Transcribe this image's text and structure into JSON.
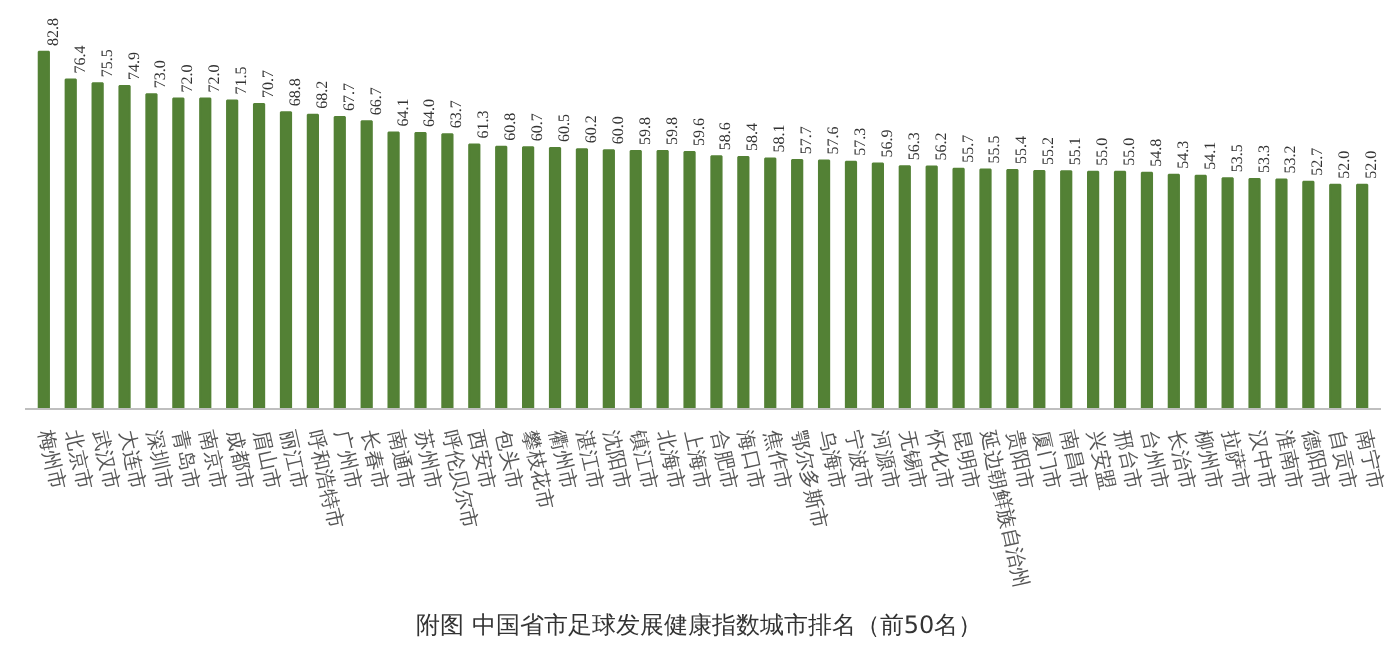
{
  "chart_data": {
    "type": "bar",
    "title": "附图  中国省市足球发展健康指数城市排名（前50名）",
    "categories": [
      "梅州市",
      "北京市",
      "武汉市",
      "大连市",
      "深圳市",
      "青岛市",
      "南京市",
      "成都市",
      "眉山市",
      "丽江市",
      "呼和浩特市",
      "广州市",
      "长春市",
      "南通市",
      "苏州市",
      "呼伦贝尔市",
      "西安市",
      "包头市",
      "攀枝花市",
      "衢州市",
      "湛江市",
      "沈阳市",
      "镇江市",
      "北海市",
      "上海市",
      "合肥市",
      "海口市",
      "焦作市",
      "鄂尔多斯市",
      "乌海市",
      "宁波市",
      "河源市",
      "无锡市",
      "怀化市",
      "昆明市",
      "延边朝鲜族自治州",
      "贵阳市",
      "厦门市",
      "南昌市",
      "兴安盟",
      "邢台市",
      "台州市",
      "长治市",
      "柳州市",
      "拉萨市",
      "汉中市",
      "淮南市",
      "德阳市",
      "自贡市",
      "南宁市"
    ],
    "values": [
      82.8,
      76.4,
      75.5,
      74.9,
      73.0,
      72.0,
      72.0,
      71.5,
      70.7,
      68.8,
      68.2,
      67.7,
      66.7,
      64.1,
      64.0,
      63.7,
      61.3,
      60.8,
      60.7,
      60.5,
      60.2,
      60.0,
      59.8,
      59.8,
      59.6,
      58.6,
      58.4,
      58.1,
      57.7,
      57.6,
      57.3,
      56.9,
      56.3,
      56.2,
      55.7,
      55.5,
      55.4,
      55.2,
      55.1,
      55.0,
      55.0,
      54.8,
      54.3,
      54.1,
      53.5,
      53.3,
      53.2,
      52.7,
      52.0,
      52.0
    ],
    "value_labels": [
      "82.8",
      "76.4",
      "75.5",
      "74.9",
      "73.0",
      "72.0",
      "72.0",
      "71.5",
      "70.7",
      "68.8",
      "68.2",
      "67.7",
      "66.7",
      "64.1",
      "64.0",
      "63.7",
      "61.3",
      "60.8",
      "60.7",
      "60.5",
      "60.2",
      "60.0",
      "59.8",
      "59.8",
      "59.6",
      "58.6",
      "58.4",
      "58.1",
      "57.7",
      "57.6",
      "57.3",
      "56.9",
      "56.3",
      "56.2",
      "55.7",
      "55.5",
      "55.4",
      "55.2",
      "55.1",
      "55.0",
      "55.0",
      "54.8",
      "54.3",
      "54.1",
      "53.5",
      "53.3",
      "53.2",
      "52.7",
      "52.0",
      "52.0"
    ],
    "color": "#538135"
  }
}
